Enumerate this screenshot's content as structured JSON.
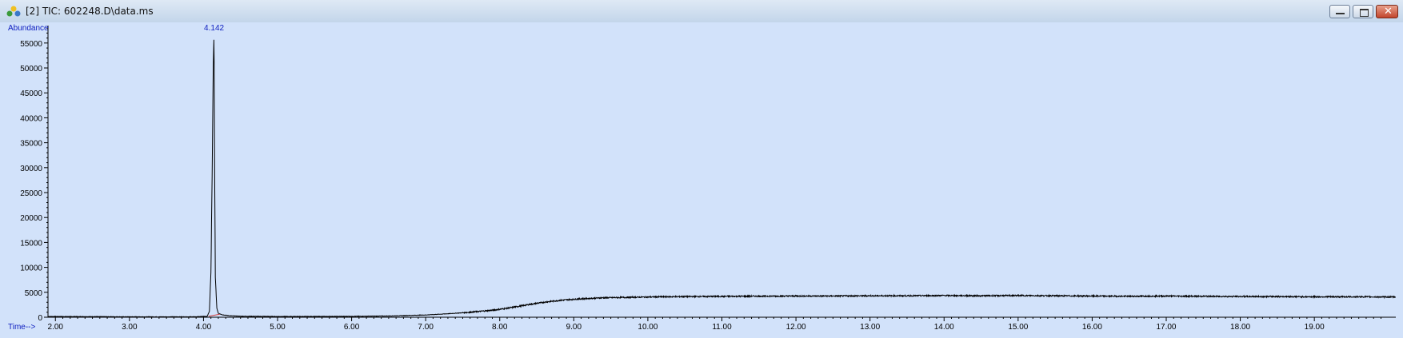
{
  "window": {
    "title": "[2] TIC: 602248.D\\data.ms",
    "icon": "chromatogram-app-icon",
    "controls": [
      "minimize-icon",
      "restore-icon",
      "close-icon"
    ]
  },
  "colors": {
    "plot_background": "#d2e2fa",
    "trace": "#000000",
    "axis_label": "#1020c0",
    "peak_label": "#1020c0",
    "baseline_marker": "#d04040"
  },
  "chart_data": {
    "type": "line",
    "title": "",
    "ylabel": "Abundance",
    "xlabel": "Time-->",
    "xlim": [
      1.9,
      20.1
    ],
    "ylim": [
      0,
      58500
    ],
    "x_ticks": [
      2,
      3,
      4,
      5,
      6,
      7,
      8,
      9,
      10,
      11,
      12,
      13,
      14,
      15,
      16,
      17,
      18,
      19
    ],
    "x_tick_labels": [
      "2.00",
      "3.00",
      "4.00",
      "5.00",
      "6.00",
      "7.00",
      "8.00",
      "9.00",
      "10.00",
      "11.00",
      "12.00",
      "13.00",
      "14.00",
      "15.00",
      "16.00",
      "17.00",
      "18.00",
      "19.00"
    ],
    "y_ticks": [
      0,
      5000,
      10000,
      15000,
      20000,
      25000,
      30000,
      35000,
      40000,
      45000,
      50000,
      55000
    ],
    "y_tick_labels": [
      "0",
      "5000",
      "10000",
      "15000",
      "20000",
      "25000",
      "30000",
      "35000",
      "40000",
      "45000",
      "50000",
      "55000"
    ],
    "peak_labels": [
      {
        "x": 4.142,
        "y": 57000,
        "text": "4.142"
      }
    ],
    "series": [
      {
        "x": [
          1.9,
          2.5,
          3.0,
          3.5,
          3.9,
          4.05,
          4.08,
          4.1,
          4.12,
          4.13,
          4.142,
          4.15,
          4.16,
          4.18,
          4.2,
          4.25,
          4.35,
          4.5,
          5.0,
          5.5,
          6.0,
          6.5,
          7.0,
          7.3,
          7.6,
          7.9,
          8.1,
          8.3,
          8.5,
          8.7,
          8.9,
          9.1,
          9.4,
          9.8,
          10.2,
          10.7,
          11.2,
          12.0,
          12.5,
          13.0,
          13.5,
          14.0,
          14.5,
          15.0,
          15.5,
          16.0,
          16.5,
          17.0,
          17.5,
          18.0,
          18.5,
          19.0,
          19.5,
          20.1
        ],
        "y": [
          150,
          120,
          90,
          80,
          90,
          200,
          1200,
          9000,
          33000,
          49000,
          57000,
          30000,
          8000,
          1800,
          800,
          500,
          300,
          200,
          150,
          150,
          180,
          250,
          450,
          700,
          1000,
          1400,
          1800,
          2300,
          2800,
          3200,
          3500,
          3700,
          3900,
          4000,
          4100,
          4150,
          4200,
          4250,
          4250,
          4300,
          4300,
          4350,
          4300,
          4350,
          4300,
          4250,
          4200,
          4250,
          4200,
          4150,
          4150,
          4100,
          4100,
          4050
        ]
      }
    ]
  }
}
